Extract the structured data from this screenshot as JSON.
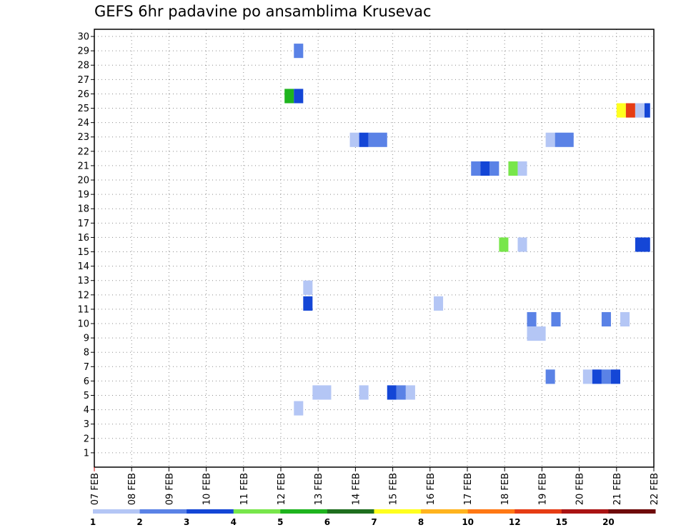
{
  "chart_data": {
    "type": "heatmap",
    "title": "GEFS 6hr padavine po ansamblima Krusevac",
    "xlabel": "",
    "ylabel": "",
    "x_tick_labels": [
      "07 FEB",
      "08 FEB",
      "09 FEB",
      "10 FEB",
      "11 FEB",
      "12 FEB",
      "13 FEB",
      "14 FEB",
      "15 FEB",
      "16 FEB",
      "17 FEB",
      "18 FEB",
      "19 FEB",
      "20 FEB",
      "21 FEB",
      "22 FEB"
    ],
    "y_tick_labels": [
      "1",
      "2",
      "3",
      "4",
      "5",
      "6",
      "7",
      "8",
      "9",
      "10",
      "11",
      "12",
      "13",
      "14",
      "15",
      "16",
      "17",
      "18",
      "19",
      "20",
      "21",
      "22",
      "23",
      "24",
      "25",
      "26",
      "27",
      "28",
      "29",
      "30"
    ],
    "ylim": [
      0,
      30.5
    ],
    "xlim_days": [
      0,
      15
    ],
    "grid": true,
    "colorbar": {
      "labels": [
        "1",
        "2",
        "3",
        "4",
        "5",
        "6",
        "7",
        "8",
        "10",
        "12",
        "15",
        "20"
      ],
      "colors": [
        "#b4c6f5",
        "#5a82e6",
        "#1446d6",
        "#78e64b",
        "#1eb41e",
        "#1e6e1e",
        "#ffff1e",
        "#ffb41e",
        "#ff7814",
        "#e63c14",
        "#aa1414",
        "#6e0a0a"
      ]
    },
    "cells": [
      {
        "day": 5.35,
        "y": 29.0,
        "w": 0.25,
        "h": 1.0,
        "color": "#5a82e6"
      },
      {
        "day": 5.1,
        "y": 25.85,
        "w": 0.25,
        "h": 1.0,
        "color": "#1eb41e"
      },
      {
        "day": 5.35,
        "y": 25.85,
        "w": 0.25,
        "h": 1.0,
        "color": "#1446d6"
      },
      {
        "day": 14.0,
        "y": 24.85,
        "w": 0.25,
        "h": 1.0,
        "color": "#ffff1e"
      },
      {
        "day": 14.25,
        "y": 24.85,
        "w": 0.25,
        "h": 1.0,
        "color": "#e63c14"
      },
      {
        "day": 14.5,
        "y": 24.85,
        "w": 0.25,
        "h": 1.0,
        "color": "#b4c6f5"
      },
      {
        "day": 14.75,
        "y": 24.85,
        "w": 0.15,
        "h": 1.0,
        "color": "#1446d6"
      },
      {
        "day": 6.85,
        "y": 22.8,
        "w": 0.25,
        "h": 1.0,
        "color": "#b4c6f5"
      },
      {
        "day": 7.1,
        "y": 22.8,
        "w": 0.25,
        "h": 1.0,
        "color": "#1446d6"
      },
      {
        "day": 7.35,
        "y": 22.8,
        "w": 0.5,
        "h": 1.0,
        "color": "#5a82e6"
      },
      {
        "day": 12.1,
        "y": 22.8,
        "w": 0.25,
        "h": 1.0,
        "color": "#b4c6f5"
      },
      {
        "day": 12.35,
        "y": 22.8,
        "w": 0.5,
        "h": 1.0,
        "color": "#5a82e6"
      },
      {
        "day": 10.1,
        "y": 20.8,
        "w": 0.25,
        "h": 1.0,
        "color": "#5a82e6"
      },
      {
        "day": 10.35,
        "y": 20.8,
        "w": 0.25,
        "h": 1.0,
        "color": "#1446d6"
      },
      {
        "day": 10.6,
        "y": 20.8,
        "w": 0.25,
        "h": 1.0,
        "color": "#5a82e6"
      },
      {
        "day": 11.1,
        "y": 20.8,
        "w": 0.25,
        "h": 1.0,
        "color": "#78e64b"
      },
      {
        "day": 11.35,
        "y": 20.8,
        "w": 0.25,
        "h": 1.0,
        "color": "#b4c6f5"
      },
      {
        "day": 10.85,
        "y": 15.5,
        "w": 0.25,
        "h": 1.0,
        "color": "#78e64b"
      },
      {
        "day": 11.35,
        "y": 15.5,
        "w": 0.25,
        "h": 1.0,
        "color": "#b4c6f5"
      },
      {
        "day": 14.5,
        "y": 15.5,
        "w": 0.4,
        "h": 1.0,
        "color": "#1446d6"
      },
      {
        "day": 5.6,
        "y": 12.5,
        "w": 0.25,
        "h": 1.0,
        "color": "#b4c6f5"
      },
      {
        "day": 5.6,
        "y": 11.4,
        "w": 0.25,
        "h": 1.0,
        "color": "#1446d6"
      },
      {
        "day": 9.1,
        "y": 11.4,
        "w": 0.25,
        "h": 1.0,
        "color": "#b4c6f5"
      },
      {
        "day": 11.6,
        "y": 10.3,
        "w": 0.25,
        "h": 1.0,
        "color": "#5a82e6"
      },
      {
        "day": 12.25,
        "y": 10.3,
        "w": 0.25,
        "h": 1.0,
        "color": "#5a82e6"
      },
      {
        "day": 13.6,
        "y": 10.3,
        "w": 0.25,
        "h": 1.0,
        "color": "#5a82e6"
      },
      {
        "day": 14.1,
        "y": 10.3,
        "w": 0.25,
        "h": 1.0,
        "color": "#b4c6f5"
      },
      {
        "day": 11.6,
        "y": 9.3,
        "w": 0.5,
        "h": 1.0,
        "color": "#b4c6f5"
      },
      {
        "day": 12.1,
        "y": 6.3,
        "w": 0.25,
        "h": 1.0,
        "color": "#5a82e6"
      },
      {
        "day": 13.1,
        "y": 6.3,
        "w": 0.25,
        "h": 1.0,
        "color": "#b4c6f5"
      },
      {
        "day": 13.35,
        "y": 6.3,
        "w": 0.25,
        "h": 1.0,
        "color": "#1446d6"
      },
      {
        "day": 13.6,
        "y": 6.3,
        "w": 0.25,
        "h": 1.0,
        "color": "#5a82e6"
      },
      {
        "day": 13.85,
        "y": 6.3,
        "w": 0.25,
        "h": 1.0,
        "color": "#1446d6"
      },
      {
        "day": 5.85,
        "y": 5.2,
        "w": 0.5,
        "h": 1.0,
        "color": "#b4c6f5"
      },
      {
        "day": 7.1,
        "y": 5.2,
        "w": 0.25,
        "h": 1.0,
        "color": "#b4c6f5"
      },
      {
        "day": 7.85,
        "y": 5.2,
        "w": 0.25,
        "h": 1.0,
        "color": "#1446d6"
      },
      {
        "day": 8.1,
        "y": 5.2,
        "w": 0.25,
        "h": 1.0,
        "color": "#5a82e6"
      },
      {
        "day": 8.35,
        "y": 5.2,
        "w": 0.25,
        "h": 1.0,
        "color": "#b4c6f5"
      },
      {
        "day": 5.35,
        "y": 4.1,
        "w": 0.25,
        "h": 1.0,
        "color": "#b4c6f5"
      }
    ]
  }
}
